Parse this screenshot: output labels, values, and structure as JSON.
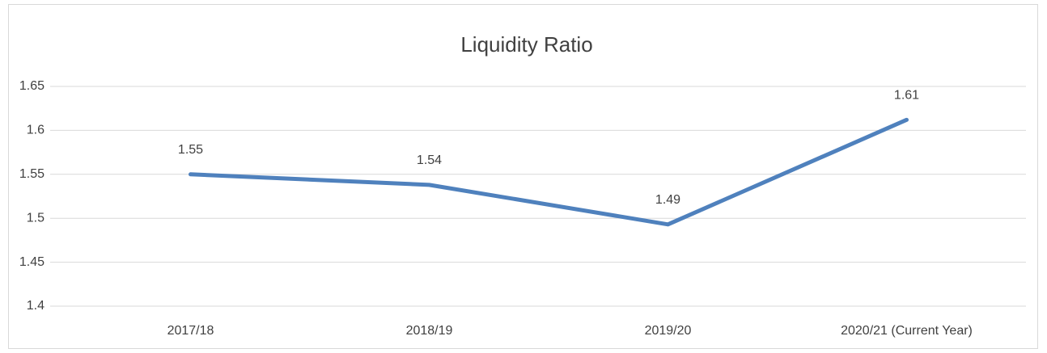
{
  "chart_data": {
    "type": "line",
    "title": "Liquidity Ratio",
    "categories": [
      "2017/18",
      "2018/19",
      "2019/20",
      "2020/21 (Current Year)"
    ],
    "series": [
      {
        "name": "Liquidity Ratio",
        "color": "#4f81bd",
        "values": [
          1.55,
          1.538,
          1.493,
          1.612
        ],
        "value_labels": [
          "1.55",
          "1.54",
          "1.49",
          "1.61"
        ]
      }
    ],
    "ylim": [
      1.4,
      1.65
    ],
    "yticks": [
      1.4,
      1.45,
      1.5,
      1.55,
      1.6,
      1.65
    ],
    "grid": true
  }
}
